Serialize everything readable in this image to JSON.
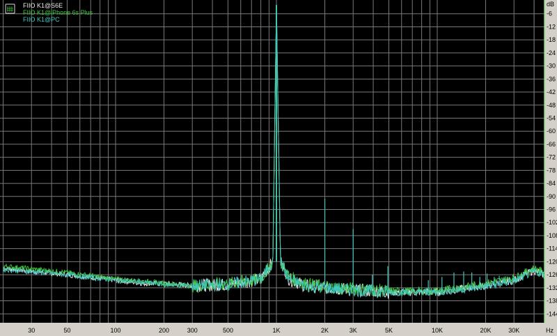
{
  "chart_data": {
    "type": "line",
    "title": "",
    "xlabel": "Hz",
    "ylabel": "dB",
    "x_scale": "log",
    "xlim": [
      20,
      46000
    ],
    "ylim": [
      -148,
      0
    ],
    "grid": true,
    "legend_placement": "top-left",
    "y_ticks": [
      "-6",
      "-12",
      "-18",
      "-24",
      "-30",
      "-36",
      "-42",
      "-48",
      "-54",
      "-60",
      "-66",
      "-72",
      "-78",
      "-84",
      "-90",
      "-96",
      "-102",
      "-108",
      "-114",
      "-120",
      "-126",
      "-132",
      "-138",
      "-144"
    ],
    "x_ticks": [
      {
        "f": 30,
        "label": "30"
      },
      {
        "f": 50,
        "label": "50"
      },
      {
        "f": 100,
        "label": "100"
      },
      {
        "f": 200,
        "label": "200"
      },
      {
        "f": 300,
        "label": "300"
      },
      {
        "f": 500,
        "label": "500"
      },
      {
        "f": 1000,
        "label": "1K"
      },
      {
        "f": 2000,
        "label": "2K"
      },
      {
        "f": 3000,
        "label": "3K"
      },
      {
        "f": 5000,
        "label": "5K"
      },
      {
        "f": 10000,
        "label": "10K"
      },
      {
        "f": 20000,
        "label": "20K"
      },
      {
        "f": 30000,
        "label": "30K"
      }
    ],
    "series": [
      {
        "name": "FIIO K1@S6E",
        "color": "#e8e8e8",
        "points": [
          [
            20,
            -123
          ],
          [
            50,
            -126
          ],
          [
            100,
            -128.5
          ],
          [
            150,
            -130
          ],
          [
            200,
            -130
          ],
          [
            300,
            -131
          ],
          [
            500,
            -130.5
          ],
          [
            800,
            -128
          ],
          [
            950,
            -120
          ],
          [
            1000,
            -2
          ],
          [
            1060,
            -120
          ],
          [
            1200,
            -128
          ],
          [
            1500,
            -131
          ],
          [
            2000,
            -132
          ],
          [
            5000,
            -134
          ],
          [
            10000,
            -134
          ],
          [
            20000,
            -131
          ],
          [
            30000,
            -128.5
          ],
          [
            40000,
            -124
          ],
          [
            46000,
            -126
          ]
        ]
      },
      {
        "name": "FIIO K1@iPhone 6s Plus",
        "color": "#3cc83c",
        "points": [
          [
            20,
            -122
          ],
          [
            50,
            -125
          ],
          [
            100,
            -128
          ],
          [
            150,
            -129
          ],
          [
            200,
            -130
          ],
          [
            300,
            -131
          ],
          [
            500,
            -130
          ],
          [
            800,
            -128
          ],
          [
            950,
            -120
          ],
          [
            1000,
            -2
          ],
          [
            1060,
            -120
          ],
          [
            1200,
            -127
          ],
          [
            1500,
            -130
          ],
          [
            2000,
            -131.5
          ],
          [
            5000,
            -133.5
          ],
          [
            10000,
            -133.5
          ],
          [
            20000,
            -130
          ],
          [
            30000,
            -127.5
          ],
          [
            40000,
            -123
          ],
          [
            46000,
            -125
          ]
        ]
      },
      {
        "name": "FIIO K1@PC",
        "color": "#40c8c0",
        "points": [
          [
            20,
            -123.5
          ],
          [
            50,
            -126
          ],
          [
            100,
            -128.5
          ],
          [
            150,
            -129.5
          ],
          [
            200,
            -130.5
          ],
          [
            300,
            -131
          ],
          [
            500,
            -130.5
          ],
          [
            800,
            -128
          ],
          [
            950,
            -120
          ],
          [
            1000,
            -2
          ],
          [
            1060,
            -120
          ],
          [
            1200,
            -128
          ],
          [
            1500,
            -131
          ],
          [
            2000,
            -132
          ],
          [
            5000,
            -134
          ],
          [
            10000,
            -134
          ],
          [
            20000,
            -131.5
          ],
          [
            30000,
            -129
          ],
          [
            40000,
            -124.5
          ],
          [
            46000,
            -126
          ]
        ],
        "harmonics": [
          [
            2000,
            -91
          ],
          [
            3000,
            -105
          ],
          [
            3950,
            -126
          ],
          [
            4930,
            -122
          ],
          [
            8800,
            -128.5
          ],
          [
            10700,
            -127
          ],
          [
            12700,
            -125
          ],
          [
            14600,
            -124.5
          ],
          [
            16400,
            -125
          ],
          [
            18400,
            -127
          ],
          [
            20400,
            -125.5
          ],
          [
            22600,
            -127
          ],
          [
            24300,
            -126.5
          ],
          [
            26000,
            -127
          ],
          [
            28000,
            -127
          ],
          [
            30000,
            -127
          ]
        ]
      }
    ]
  },
  "colors": {
    "background": "#000000",
    "grid": "#7a7a7a",
    "axis_panel": "#d4d0c8",
    "right_marker": "#7ee07e"
  },
  "legend_icon": "spectrum-window-icon"
}
